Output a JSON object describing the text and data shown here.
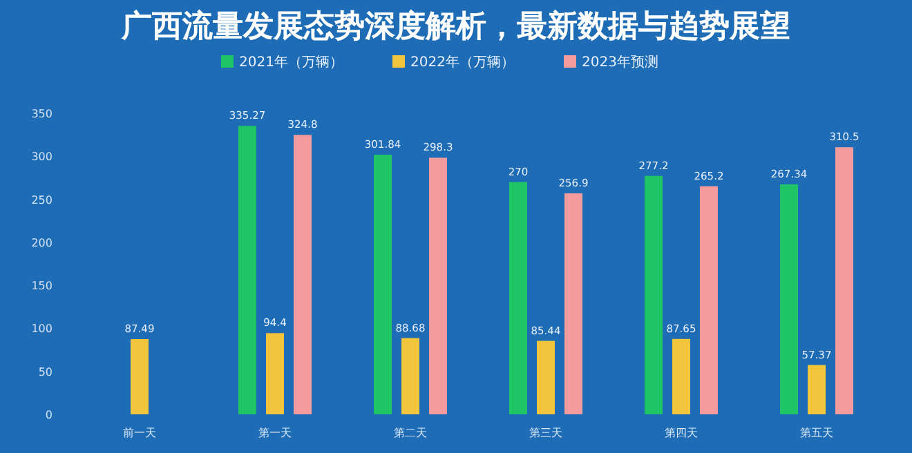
{
  "chart_data": {
    "type": "bar",
    "title": "广西流量发展态势深度解析，最新数据与趋势展望",
    "categories": [
      "前一天",
      "第一天",
      "第二天",
      "第三天",
      "第四天",
      "第五天"
    ],
    "series": [
      {
        "name": "2021年（万辆）",
        "color": "#1ec466",
        "values": [
          null,
          335.27,
          301.84,
          270,
          277.2,
          267.34
        ]
      },
      {
        "name": "2022年（万辆）",
        "color": "#f2c43c",
        "values": [
          87.49,
          94.4,
          88.68,
          85.44,
          87.65,
          57.37
        ]
      },
      {
        "name": "2023年预测",
        "color": "#f39a9c",
        "values": [
          null,
          324.8,
          298.3,
          256.9,
          265.2,
          310.5
        ]
      }
    ],
    "ylim": [
      0,
      350
    ],
    "yticks": [
      0,
      50,
      100,
      150,
      200,
      250,
      300,
      350
    ],
    "data_labels": true,
    "legend": "top",
    "grid": false
  }
}
